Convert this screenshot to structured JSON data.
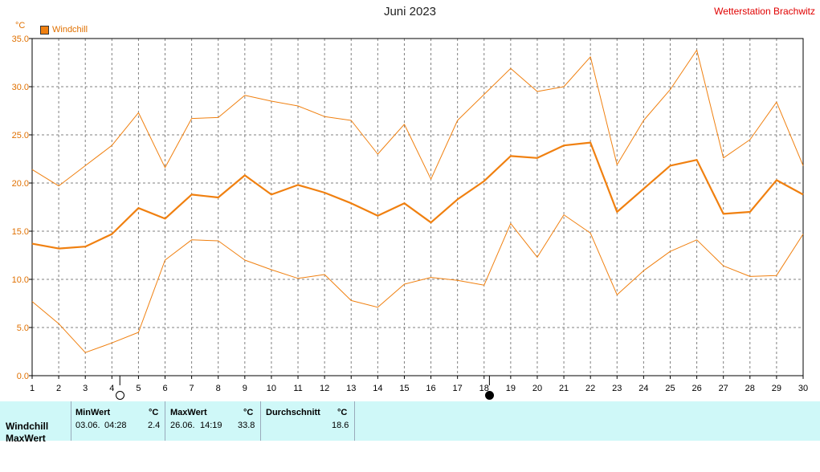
{
  "header": {
    "title": "Juni 2023",
    "station": "Wetterstation Brachwitz",
    "unit": "°C",
    "legend_label": "Windchill"
  },
  "colors": {
    "series_main": "#f08010",
    "series_range": "#f08010",
    "grid": "#808080",
    "station": "#e00000",
    "table_bg": "#cff8f8"
  },
  "moon_phases": [
    {
      "day": 4.3,
      "icon": "full-moon-icon"
    },
    {
      "day": 18.2,
      "icon": "new-moon-icon"
    }
  ],
  "chart_data": {
    "type": "line",
    "title": "Juni 2023",
    "ylabel": "°C",
    "xlim": [
      1,
      30
    ],
    "ylim": [
      0,
      35
    ],
    "grid": true,
    "legend_placement": "top-left",
    "x": [
      1,
      2,
      3,
      4,
      5,
      6,
      7,
      8,
      9,
      10,
      11,
      12,
      13,
      14,
      15,
      16,
      17,
      18,
      19,
      20,
      21,
      22,
      23,
      24,
      25,
      26,
      27,
      28,
      29,
      30
    ],
    "xticks": [
      "1",
      "2",
      "3",
      "4",
      "5",
      "6",
      "7",
      "8",
      "9",
      "10",
      "11",
      "12",
      "13",
      "14",
      "15",
      "16",
      "17",
      "18",
      "19",
      "20",
      "21",
      "22",
      "23",
      "24",
      "25",
      "26",
      "27",
      "28",
      "29",
      "30"
    ],
    "yticks": [
      "0.0",
      "5.0",
      "10.0",
      "15.0",
      "20.0",
      "25.0",
      "30.0",
      "35.0"
    ],
    "series": [
      {
        "name": "Windchill",
        "role": "mean",
        "values": [
          13.7,
          13.2,
          13.4,
          14.7,
          17.4,
          16.3,
          18.8,
          18.5,
          20.8,
          18.8,
          19.8,
          19.0,
          17.9,
          16.6,
          17.9,
          15.9,
          18.3,
          20.2,
          22.8,
          22.6,
          23.9,
          24.2,
          17.0,
          19.4,
          21.8,
          22.4,
          16.8,
          17.0,
          20.3,
          18.8
        ]
      },
      {
        "role": "max",
        "values": [
          21.4,
          19.7,
          21.8,
          23.9,
          27.3,
          21.6,
          26.7,
          26.8,
          29.1,
          28.5,
          28.0,
          26.9,
          26.5,
          23.0,
          26.1,
          20.4,
          26.5,
          29.2,
          31.9,
          29.5,
          30.0,
          33.1,
          21.9,
          26.5,
          29.7,
          33.8,
          22.6,
          24.5,
          28.4,
          21.8
        ]
      },
      {
        "role": "min",
        "values": [
          7.7,
          5.4,
          2.4,
          3.4,
          4.5,
          12.0,
          14.1,
          14.0,
          12.0,
          11.0,
          10.1,
          10.5,
          7.8,
          7.1,
          9.5,
          10.2,
          9.9,
          9.4,
          15.8,
          12.3,
          16.7,
          14.8,
          8.4,
          10.9,
          12.9,
          14.1,
          11.4,
          10.3,
          10.4,
          14.7
        ]
      }
    ]
  },
  "table": {
    "row_label": "Windchill",
    "row_label2": "MaxWert",
    "min": {
      "header": "MinWert",
      "unit": "°C",
      "date": "03.06.",
      "time": "04:28",
      "value": "2.4"
    },
    "max": {
      "header": "MaxWert",
      "unit": "°C",
      "date": "26.06.",
      "time": "14:19",
      "value": "33.8"
    },
    "avg": {
      "header": "Durchschnitt",
      "unit": "°C",
      "value": "18.6"
    }
  }
}
